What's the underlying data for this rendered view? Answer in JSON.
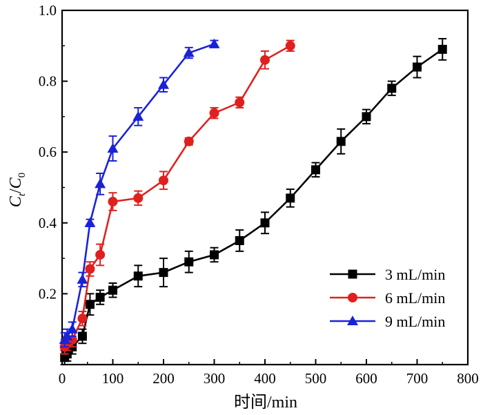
{
  "chart_data": {
    "type": "line",
    "title": "",
    "xlabel": "时间/min",
    "ylabel_parts": {
      "c": "C",
      "t": "t",
      "slash": "/",
      "c0": "C",
      "zero": "0"
    },
    "xlim": [
      0,
      800
    ],
    "ylim": [
      0,
      1.0
    ],
    "xticks": [
      0,
      100,
      200,
      300,
      400,
      500,
      600,
      700,
      800
    ],
    "xtick_labels": [
      "0",
      "100",
      "200",
      "300",
      "400",
      "500",
      "600",
      "700",
      "800"
    ],
    "yticks": [
      0.2,
      0.4,
      0.6,
      0.8,
      1.0
    ],
    "ytick_labels": [
      "0.2",
      "0.4",
      "0.6",
      "0.8",
      "1.0"
    ],
    "grid": false,
    "legend_position": "bottom-right",
    "series": [
      {
        "name": "3 mL/min",
        "color": "#000000",
        "marker": "square",
        "x": [
          5,
          10,
          20,
          40,
          55,
          75,
          100,
          150,
          200,
          250,
          300,
          350,
          400,
          450,
          500,
          550,
          600,
          650,
          700,
          750
        ],
        "y": [
          0.02,
          0.03,
          0.05,
          0.08,
          0.17,
          0.19,
          0.21,
          0.25,
          0.26,
          0.29,
          0.31,
          0.35,
          0.4,
          0.47,
          0.55,
          0.63,
          0.7,
          0.78,
          0.84,
          0.89
        ],
        "err": [
          0.02,
          0.02,
          0.02,
          0.02,
          0.03,
          0.02,
          0.02,
          0.03,
          0.04,
          0.03,
          0.02,
          0.03,
          0.03,
          0.025,
          0.02,
          0.035,
          0.02,
          0.02,
          0.03,
          0.03
        ]
      },
      {
        "name": "6 mL/min",
        "color": "#e0201e",
        "marker": "circle",
        "x": [
          5,
          10,
          20,
          40,
          55,
          75,
          100,
          150,
          200,
          250,
          300,
          350,
          400,
          450
        ],
        "y": [
          0.05,
          0.06,
          0.07,
          0.13,
          0.27,
          0.31,
          0.46,
          0.47,
          0.52,
          0.63,
          0.71,
          0.74,
          0.86,
          0.9
        ],
        "err": [
          0.02,
          0.02,
          0.02,
          0.02,
          0.02,
          0.03,
          0.025,
          0.02,
          0.025,
          0.01,
          0.015,
          0.015,
          0.025,
          0.015
        ]
      },
      {
        "name": "9 mL/min",
        "color": "#1a22d8",
        "marker": "triangle",
        "x": [
          5,
          10,
          20,
          40,
          55,
          75,
          100,
          150,
          200,
          250,
          300
        ],
        "y": [
          0.07,
          0.08,
          0.1,
          0.24,
          0.4,
          0.51,
          0.61,
          0.7,
          0.79,
          0.88,
          0.905
        ],
        "err": [
          0.02,
          0.02,
          0.02,
          0.02,
          0.01,
          0.03,
          0.035,
          0.025,
          0.02,
          0.015,
          0.01
        ]
      }
    ]
  }
}
